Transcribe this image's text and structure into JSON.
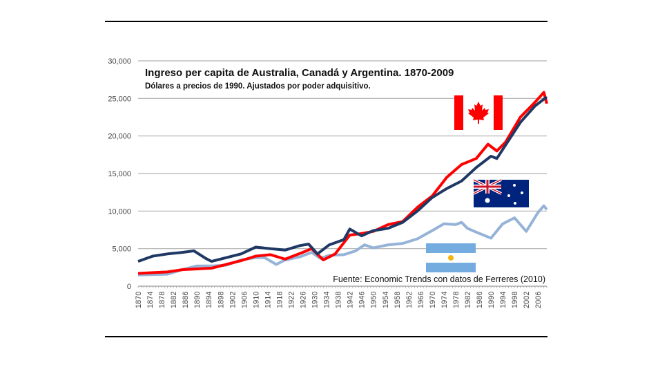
{
  "chart_data": {
    "type": "line",
    "title": "Ingreso per capita de Australia, Canadá y Argentina. 1870-2009",
    "subtitle": "Dólares a precios de 1990. Ajustados por poder adquisitivo.",
    "source": "Fuente: Economic Trends con datos de Ferreres (2010)",
    "xlim": [
      1870,
      2009
    ],
    "ylim": [
      0,
      30000
    ],
    "yticks": [
      "0",
      "5,000",
      "10,000",
      "15,000",
      "20,000",
      "25,000",
      "30,000"
    ],
    "xticks": [
      "1870",
      "1874",
      "1878",
      "1882",
      "1886",
      "1890",
      "1894",
      "1898",
      "1902",
      "1906",
      "1910",
      "1914",
      "1918",
      "1922",
      "1926",
      "1930",
      "1934",
      "1938",
      "1942",
      "1946",
      "1950",
      "1954",
      "1958",
      "1962",
      "1966",
      "1970",
      "1974",
      "1978",
      "1982",
      "1986",
      "1990",
      "1994",
      "1998",
      "2002",
      "2006"
    ],
    "grid": true,
    "legend": "flags",
    "series": [
      {
        "country": "Canadá",
        "flag": "canada-flag",
        "color": "#ff0000",
        "x": [
          1870,
          1875,
          1880,
          1885,
          1890,
          1895,
          1900,
          1905,
          1910,
          1915,
          1920,
          1926,
          1929,
          1933,
          1937,
          1942,
          1946,
          1950,
          1955,
          1960,
          1965,
          1970,
          1975,
          1980,
          1985,
          1989,
          1992,
          1995,
          2000,
          2005,
          2008,
          2009
        ],
        "y": [
          1700,
          1800,
          1900,
          2200,
          2300,
          2400,
          2900,
          3400,
          4000,
          4200,
          3600,
          4500,
          5000,
          3500,
          4300,
          6800,
          7000,
          7300,
          8200,
          8600,
          10500,
          12000,
          14500,
          16200,
          17000,
          18900,
          18000,
          19200,
          22500,
          24500,
          25800,
          24300
        ]
      },
      {
        "country": "Australia",
        "flag": "australia-flag",
        "color": "#1f3864",
        "x": [
          1870,
          1875,
          1880,
          1885,
          1889,
          1893,
          1895,
          1900,
          1905,
          1910,
          1915,
          1920,
          1925,
          1928,
          1931,
          1935,
          1940,
          1942,
          1946,
          1950,
          1955,
          1960,
          1965,
          1970,
          1975,
          1980,
          1985,
          1990,
          1992,
          1995,
          2000,
          2005,
          2009
        ],
        "y": [
          3300,
          4000,
          4300,
          4500,
          4700,
          3700,
          3300,
          3800,
          4300,
          5200,
          5000,
          4800,
          5400,
          5600,
          4300,
          5500,
          6200,
          7600,
          6700,
          7400,
          7700,
          8500,
          10000,
          11800,
          13000,
          14000,
          15800,
          17300,
          17000,
          18800,
          21800,
          24000,
          25200
        ]
      },
      {
        "country": "Argentina",
        "flag": "argentina-flag",
        "color": "#95b3d7",
        "x": [
          1870,
          1880,
          1885,
          1890,
          1895,
          1900,
          1905,
          1910,
          1913,
          1917,
          1920,
          1925,
          1929,
          1932,
          1935,
          1940,
          1944,
          1947,
          1950,
          1955,
          1960,
          1965,
          1970,
          1974,
          1978,
          1980,
          1982,
          1985,
          1990,
          1994,
          1998,
          2002,
          2006,
          2008,
          2009
        ],
        "y": [
          1500,
          1600,
          2200,
          2700,
          2700,
          2800,
          3500,
          3800,
          3800,
          2900,
          3500,
          3900,
          4500,
          3700,
          4100,
          4200,
          4700,
          5500,
          5100,
          5500,
          5700,
          6300,
          7400,
          8300,
          8200,
          8500,
          7700,
          7200,
          6400,
          8300,
          9100,
          7300,
          9800,
          10700,
          10200
        ]
      }
    ]
  }
}
